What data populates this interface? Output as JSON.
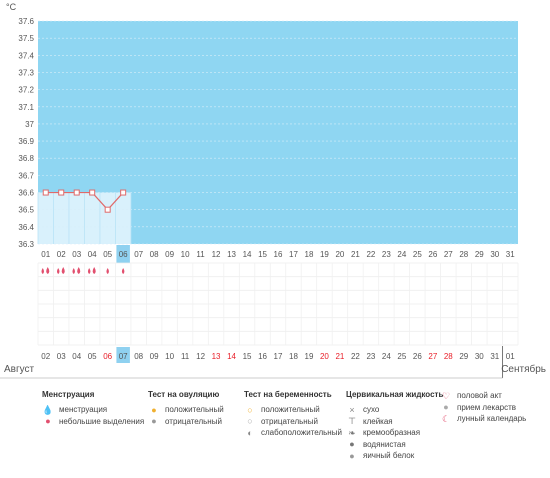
{
  "chart_data": {
    "type": "line",
    "y_unit": "°C",
    "yticks": [
      "37.6",
      "37.5",
      "37.4",
      "37.3",
      "37.2",
      "37.1",
      "37",
      "36.9",
      "36.8",
      "36.7",
      "36.6",
      "36.5",
      "36.4",
      "36.3"
    ],
    "ylim": [
      36.3,
      37.6
    ],
    "grid": true,
    "days_top": [
      "01",
      "02",
      "03",
      "04",
      "05",
      "06",
      "07",
      "08",
      "09",
      "10",
      "11",
      "12",
      "13",
      "14",
      "15",
      "16",
      "17",
      "18",
      "19",
      "20",
      "21",
      "22",
      "23",
      "24",
      "25",
      "26",
      "27",
      "28",
      "29",
      "30",
      "31"
    ],
    "highlight_top_index": 5,
    "series": [
      {
        "x": [
          "01",
          "02",
          "03",
          "04",
          "05",
          "06"
        ],
        "values": [
          36.6,
          36.6,
          36.6,
          36.6,
          36.5,
          36.6
        ]
      }
    ],
    "menstruation_markers": [
      "heavy",
      "heavy",
      "heavy",
      "heavy",
      "light",
      "light"
    ],
    "days_bottom": [
      {
        "d": "02",
        "w": false
      },
      {
        "d": "03",
        "w": false
      },
      {
        "d": "04",
        "w": false
      },
      {
        "d": "05",
        "w": false
      },
      {
        "d": "06",
        "w": true
      },
      {
        "d": "07",
        "w": false
      },
      {
        "d": "08",
        "w": false
      },
      {
        "d": "09",
        "w": false
      },
      {
        "d": "10",
        "w": false
      },
      {
        "d": "11",
        "w": false
      },
      {
        "d": "12",
        "w": false
      },
      {
        "d": "13",
        "w": true
      },
      {
        "d": "14",
        "w": true
      },
      {
        "d": "15",
        "w": false
      },
      {
        "d": "16",
        "w": false
      },
      {
        "d": "17",
        "w": false
      },
      {
        "d": "18",
        "w": false
      },
      {
        "d": "19",
        "w": false
      },
      {
        "d": "20",
        "w": true
      },
      {
        "d": "21",
        "w": true
      },
      {
        "d": "22",
        "w": false
      },
      {
        "d": "23",
        "w": false
      },
      {
        "d": "24",
        "w": false
      },
      {
        "d": "25",
        "w": false
      },
      {
        "d": "26",
        "w": false
      },
      {
        "d": "27",
        "w": true
      },
      {
        "d": "28",
        "w": true
      },
      {
        "d": "29",
        "w": false
      },
      {
        "d": "30",
        "w": false
      },
      {
        "d": "31",
        "w": false
      },
      {
        "d": "01",
        "w": false
      }
    ],
    "highlight_bottom_index": 5,
    "month_left": "Август",
    "month_right": "Сентябрь"
  },
  "colors": {
    "chart_fill": "#8fd6f2",
    "grid_line": "#d8eef9",
    "past_fill": "#d9f1fc",
    "line": "#e06a6a",
    "highlight_cell": "#8fd1f0",
    "weekend_text": "#e8202a",
    "drop": "#e2506f"
  },
  "legend": [
    {
      "title": "Менструация",
      "items": [
        {
          "icon": "drops-icon",
          "label": "менструация"
        },
        {
          "icon": "drop-icon",
          "label": "небольшие выделения"
        }
      ]
    },
    {
      "title": "Тест на овуляцию",
      "items": [
        {
          "icon": "positive-ovulation-icon",
          "label": "положительный"
        },
        {
          "icon": "negative-ovulation-icon",
          "label": "отрицательный"
        }
      ]
    },
    {
      "title": "Тест на беременность",
      "items": [
        {
          "icon": "positive-pregnancy-icon",
          "label": "положительный"
        },
        {
          "icon": "negative-pregnancy-icon",
          "label": "отрицательный"
        },
        {
          "icon": "weak-positive-pregnancy-icon",
          "label": "слабоположительный"
        }
      ]
    },
    {
      "title": "Цервикальная жидкость",
      "items": [
        {
          "icon": "dry-icon",
          "label": "сухо"
        },
        {
          "icon": "sticky-icon",
          "label": "клейкая"
        },
        {
          "icon": "creamy-icon",
          "label": "кремообразная"
        },
        {
          "icon": "watery-icon",
          "label": "водянистая"
        },
        {
          "icon": "egg-white-icon",
          "label": "яичный белок"
        }
      ]
    },
    {
      "title": "",
      "items": [
        {
          "icon": "heart-icon",
          "label": "половой акт"
        },
        {
          "icon": "pill-icon",
          "label": "прием лекарств"
        },
        {
          "icon": "moon-icon",
          "label": "лунный календарь"
        }
      ]
    }
  ]
}
